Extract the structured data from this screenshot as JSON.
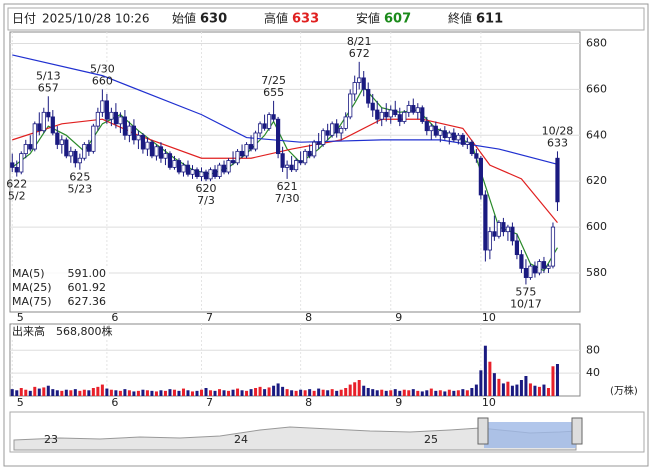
{
  "header": {
    "date_label": "日付",
    "date": "2025/10/28 10:26",
    "open_label": "始値",
    "open": 630,
    "high_label": "高値",
    "high": 633,
    "low_label": "安値",
    "low": 607,
    "close_label": "終値",
    "close": 611
  },
  "chart_data": [
    {
      "type": "candlestick",
      "up_color": "#ffffff",
      "down_color": "#1a1a80",
      "edge_color": "#1a1a80",
      "xlim": [
        -0.5,
        126
      ],
      "xticks": [
        {
          "value": 0,
          "label": "5"
        },
        {
          "value": 21,
          "label": "6"
        },
        {
          "value": 42,
          "label": "7"
        },
        {
          "value": 64,
          "label": "8"
        },
        {
          "value": 84,
          "label": "9"
        },
        {
          "value": 104,
          "label": "10"
        }
      ],
      "ylim": [
        563,
        685
      ],
      "yticks": [
        580,
        600,
        620,
        640,
        660,
        680
      ],
      "grid": true,
      "ohlc": [
        [
          628,
          632,
          624,
          626
        ],
        [
          626,
          629,
          622,
          624
        ],
        [
          624,
          633,
          623,
          632
        ],
        [
          632,
          638,
          630,
          636
        ],
        [
          636,
          640,
          633,
          634
        ],
        [
          634,
          646,
          633,
          645
        ],
        [
          645,
          650,
          640,
          642
        ],
        [
          642,
          652,
          641,
          650
        ],
        [
          650,
          657,
          646,
          648
        ],
        [
          648,
          651,
          640,
          641
        ],
        [
          641,
          644,
          634,
          636
        ],
        [
          636,
          640,
          632,
          638
        ],
        [
          638,
          639,
          630,
          631
        ],
        [
          631,
          635,
          628,
          633
        ],
        [
          633,
          634,
          626,
          628
        ],
        [
          628,
          632,
          625,
          630
        ],
        [
          630,
          637,
          629,
          636
        ],
        [
          636,
          638,
          631,
          633
        ],
        [
          633,
          645,
          632,
          644
        ],
        [
          644,
          652,
          642,
          650
        ],
        [
          650,
          660,
          648,
          655
        ],
        [
          655,
          658,
          645,
          647
        ],
        [
          647,
          652,
          644,
          650
        ],
        [
          650,
          654,
          643,
          645
        ],
        [
          645,
          650,
          641,
          648
        ],
        [
          648,
          651,
          638,
          640
        ],
        [
          640,
          646,
          637,
          644
        ],
        [
          644,
          647,
          636,
          638
        ],
        [
          638,
          642,
          634,
          640
        ],
        [
          640,
          641,
          632,
          634
        ],
        [
          634,
          639,
          631,
          637
        ],
        [
          637,
          638,
          630,
          631
        ],
        [
          631,
          636,
          629,
          635
        ],
        [
          635,
          637,
          628,
          630
        ],
        [
          630,
          634,
          627,
          632
        ],
        [
          632,
          633,
          625,
          626
        ],
        [
          626,
          631,
          625,
          629
        ],
        [
          629,
          630,
          623,
          624
        ],
        [
          624,
          628,
          622,
          627
        ],
        [
          627,
          629,
          622,
          623
        ],
        [
          623,
          627,
          621,
          625
        ],
        [
          625,
          626,
          621,
          622
        ],
        [
          622,
          626,
          620,
          624
        ],
        [
          624,
          625,
          620,
          621
        ],
        [
          621,
          626,
          620,
          625
        ],
        [
          625,
          627,
          621,
          622
        ],
        [
          622,
          628,
          621,
          627
        ],
        [
          627,
          629,
          623,
          624
        ],
        [
          624,
          630,
          623,
          629
        ],
        [
          629,
          633,
          627,
          628
        ],
        [
          628,
          634,
          627,
          633
        ],
        [
          633,
          636,
          630,
          631
        ],
        [
          631,
          637,
          630,
          636
        ],
        [
          636,
          640,
          633,
          634
        ],
        [
          634,
          642,
          633,
          641
        ],
        [
          641,
          646,
          639,
          645
        ],
        [
          645,
          649,
          642,
          643
        ],
        [
          643,
          650,
          642,
          649
        ],
        [
          649,
          655,
          646,
          647
        ],
        [
          647,
          648,
          630,
          632
        ],
        [
          632,
          635,
          624,
          626
        ],
        [
          626,
          629,
          621,
          627
        ],
        [
          627,
          631,
          624,
          625
        ],
        [
          625,
          630,
          624,
          629
        ],
        [
          629,
          633,
          627,
          628
        ],
        [
          628,
          634,
          627,
          633
        ],
        [
          633,
          636,
          630,
          631
        ],
        [
          631,
          638,
          630,
          637
        ],
        [
          637,
          641,
          634,
          636
        ],
        [
          636,
          643,
          635,
          642
        ],
        [
          642,
          645,
          638,
          640
        ],
        [
          640,
          646,
          639,
          645
        ],
        [
          645,
          647,
          639,
          641
        ],
        [
          641,
          644,
          638,
          643
        ],
        [
          643,
          650,
          642,
          648
        ],
        [
          648,
          660,
          647,
          658
        ],
        [
          658,
          666,
          655,
          663
        ],
        [
          663,
          672,
          660,
          665
        ],
        [
          665,
          668,
          657,
          660
        ],
        [
          660,
          663,
          652,
          654
        ],
        [
          654,
          658,
          648,
          651
        ],
        [
          651,
          655,
          645,
          647
        ],
        [
          647,
          652,
          644,
          650
        ],
        [
          650,
          654,
          646,
          648
        ],
        [
          648,
          653,
          645,
          651
        ],
        [
          651,
          655,
          648,
          649
        ],
        [
          649,
          652,
          644,
          646
        ],
        [
          646,
          651,
          645,
          650
        ],
        [
          650,
          655,
          648,
          653
        ],
        [
          653,
          656,
          649,
          650
        ],
        [
          650,
          654,
          647,
          652
        ],
        [
          652,
          653,
          645,
          646
        ],
        [
          646,
          648,
          640,
          642
        ],
        [
          642,
          645,
          638,
          644
        ],
        [
          644,
          646,
          639,
          640
        ],
        [
          640,
          643,
          637,
          642
        ],
        [
          642,
          644,
          638,
          639
        ],
        [
          639,
          642,
          636,
          641
        ],
        [
          641,
          643,
          637,
          638
        ],
        [
          638,
          641,
          636,
          640
        ],
        [
          640,
          641,
          635,
          636
        ],
        [
          636,
          639,
          634,
          637
        ],
        [
          637,
          638,
          631,
          632
        ],
        [
          632,
          634,
          628,
          630
        ],
        [
          630,
          631,
          612,
          614
        ],
        [
          614,
          616,
          585,
          590
        ],
        [
          590,
          600,
          586,
          598
        ],
        [
          598,
          605,
          594,
          596
        ],
        [
          596,
          603,
          595,
          602
        ],
        [
          602,
          604,
          596,
          598
        ],
        [
          598,
          601,
          594,
          600
        ],
        [
          600,
          602,
          592,
          594
        ],
        [
          594,
          597,
          586,
          588
        ],
        [
          588,
          590,
          580,
          582
        ],
        [
          582,
          586,
          575,
          578
        ],
        [
          578,
          584,
          577,
          583
        ],
        [
          583,
          585,
          578,
          580
        ],
        [
          580,
          586,
          579,
          585
        ],
        [
          585,
          587,
          580,
          582
        ],
        [
          582,
          584,
          580,
          583
        ],
        [
          583,
          602,
          582,
          600
        ],
        [
          630,
          633,
          607,
          611
        ]
      ],
      "series": [
        {
          "name": "MA(5)",
          "color": "#2a8a2a",
          "last_label": "591.00",
          "x": [
            0,
            4,
            8,
            12,
            16,
            20,
            24,
            28,
            32,
            36,
            40,
            44,
            48,
            52,
            56,
            58,
            61,
            64,
            68,
            72,
            76,
            78,
            82,
            86,
            90,
            94,
            98,
            102,
            105,
            108,
            112,
            115,
            118,
            121
          ],
          "values": [
            626,
            632,
            644,
            640,
            633,
            645,
            649,
            642,
            636,
            630,
            625,
            623,
            626,
            632,
            640,
            646,
            634,
            628,
            634,
            642,
            654,
            661,
            652,
            650,
            651,
            643,
            640,
            636,
            618,
            600,
            597,
            584,
            581,
            591
          ]
        },
        {
          "name": "MA(25)",
          "color": "#e02020",
          "last_label": "601.92",
          "x": [
            0,
            11,
            20,
            28,
            42,
            53,
            62,
            73,
            82,
            91,
            100,
            106,
            113,
            121
          ],
          "values": [
            638,
            645,
            647,
            640,
            630,
            630,
            634,
            638,
            647,
            647,
            643,
            627,
            621,
            601.92
          ]
        },
        {
          "name": "MA(75)",
          "color": "#2030d0",
          "last_label": "627.36",
          "x": [
            0,
            20,
            42,
            52,
            64,
            82,
            95,
            108,
            121
          ],
          "values": [
            675,
            666,
            649,
            639,
            637,
            638,
            638,
            634,
            627.36
          ]
        }
      ],
      "annotations": [
        {
          "index": 8,
          "date": "5/13",
          "price": 657,
          "pos": "high"
        },
        {
          "index": 20,
          "date": "5/30",
          "price": 660,
          "pos": "high"
        },
        {
          "index": 58,
          "date": "7/25",
          "price": 655,
          "pos": "high"
        },
        {
          "index": 77,
          "date": "8/21",
          "price": 672,
          "pos": "high"
        },
        {
          "index": 121,
          "date": "10/28",
          "price": 633,
          "pos": "high"
        },
        {
          "index": 1,
          "date": "5/2",
          "price": 622,
          "pos": "low"
        },
        {
          "index": 15,
          "date": "5/23",
          "price": 625,
          "pos": "low"
        },
        {
          "index": 43,
          "date": "7/3",
          "price": 620,
          "pos": "low"
        },
        {
          "index": 61,
          "date": "7/30",
          "price": 621,
          "pos": "low"
        },
        {
          "index": 114,
          "date": "10/17",
          "price": 575,
          "pos": "low"
        }
      ]
    },
    {
      "type": "bar",
      "title": "出来高",
      "subtitle": "568,800株",
      "y_unit": "(万株)",
      "up_color": "#e8202a",
      "down_color": "#1a1a80",
      "xlim": [
        -0.5,
        126
      ],
      "xticks": [
        {
          "value": 0,
          "label": "5"
        },
        {
          "value": 21,
          "label": "6"
        },
        {
          "value": 42,
          "label": "7"
        },
        {
          "value": 64,
          "label": "8"
        },
        {
          "value": 84,
          "label": "9"
        },
        {
          "value": 104,
          "label": "10"
        }
      ],
      "ylim": [
        0,
        126
      ],
      "yticks": [
        40,
        80
      ],
      "values": [
        12,
        10,
        14,
        11,
        9,
        16,
        13,
        15,
        18,
        12,
        10,
        9,
        11,
        10,
        12,
        9,
        11,
        10,
        14,
        16,
        20,
        13,
        11,
        10,
        9,
        12,
        10,
        8,
        9,
        11,
        10,
        9,
        8,
        10,
        9,
        12,
        11,
        9,
        13,
        10,
        8,
        9,
        11,
        14,
        10,
        9,
        12,
        10,
        9,
        11,
        13,
        10,
        9,
        12,
        14,
        16,
        12,
        15,
        18,
        22,
        16,
        12,
        10,
        9,
        11,
        10,
        12,
        9,
        13,
        11,
        10,
        12,
        9,
        11,
        14,
        20,
        24,
        28,
        18,
        14,
        12,
        10,
        11,
        9,
        10,
        12,
        9,
        11,
        10,
        12,
        9,
        8,
        10,
        13,
        9,
        10,
        8,
        11,
        9,
        10,
        12,
        10,
        14,
        20,
        45,
        88,
        60,
        40,
        30,
        22,
        25,
        18,
        20,
        28,
        35,
        22,
        18,
        16,
        20,
        14,
        52,
        56
      ]
    }
  ],
  "navigator": {
    "labels": [
      "23",
      "24",
      "25"
    ]
  }
}
